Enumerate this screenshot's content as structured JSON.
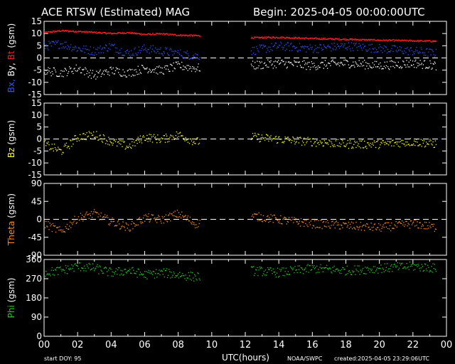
{
  "header": {
    "title": "ACE RTSW (Estimated) MAG",
    "begin": "Begin: 2025-04-05 00:00:00UTC"
  },
  "footer": {
    "start_doy": "start DOY:   95",
    "xlabel": "UTC(hours)",
    "source": "NOAA/SWPC",
    "created": "created:2025-04-05 23:29:06UTC"
  },
  "colors": {
    "background": "#000000",
    "axes": "#ffffff",
    "bx": "#2b55ff",
    "by": "#ffffff",
    "bt": "#ff2020",
    "bz": "#ffff00",
    "theta": "#ff8c1a",
    "phi": "#22cc22"
  },
  "chart_data": [
    {
      "type": "scatter",
      "panel": "bxbybt",
      "ylabel_parts": [
        {
          "text": "Bx,",
          "color": "#2b55ff"
        },
        {
          "text": " By,",
          "color": "#ffffff"
        },
        {
          "text": " Bt",
          "color": "#ff2020"
        },
        {
          "text": " (gsm)",
          "color": "#ffffff"
        }
      ],
      "ylim": [
        -15,
        15
      ],
      "yticks": [
        "15",
        "10",
        "5",
        "0",
        "-5",
        "-10",
        "-15"
      ],
      "ytick_values": [
        15,
        10,
        5,
        0,
        -5,
        -10,
        -15
      ],
      "xlim": [
        0,
        24
      ],
      "xticks": [
        "00",
        "02",
        "04",
        "06",
        "08",
        "10",
        "12",
        "14",
        "16",
        "18",
        "20",
        "22",
        "00"
      ],
      "data_gap_hours": [
        9.3,
        12.3
      ],
      "series": [
        {
          "name": "Bt",
          "color": "#ff2020",
          "values": [
            [
              0,
              10.5
            ],
            [
              1,
              11.3
            ],
            [
              2,
              11.0
            ],
            [
              3,
              10.6
            ],
            [
              4,
              10.2
            ],
            [
              5,
              10.5
            ],
            [
              6,
              9.8
            ],
            [
              7,
              10.0
            ],
            [
              8,
              9.5
            ],
            [
              9,
              9.3
            ],
            [
              12.3,
              8.4
            ],
            [
              14,
              8.6
            ],
            [
              16,
              8.1
            ],
            [
              18,
              7.8
            ],
            [
              20,
              7.4
            ],
            [
              22,
              7.2
            ],
            [
              23.4,
              7.0
            ]
          ]
        },
        {
          "name": "Bx",
          "color": "#2b55ff",
          "values": [
            [
              0,
              5
            ],
            [
              1,
              6
            ],
            [
              2,
              4
            ],
            [
              3,
              3
            ],
            [
              4,
              5
            ],
            [
              5,
              2
            ],
            [
              6,
              4
            ],
            [
              7,
              3
            ],
            [
              8,
              2
            ],
            [
              9,
              1
            ],
            [
              12.3,
              3
            ],
            [
              14,
              5
            ],
            [
              16,
              4
            ],
            [
              18,
              5
            ],
            [
              20,
              4
            ],
            [
              22,
              3
            ],
            [
              23.4,
              2
            ]
          ]
        },
        {
          "name": "By",
          "color": "#ffffff",
          "values": [
            [
              0,
              -5
            ],
            [
              1,
              -6
            ],
            [
              2,
              -4
            ],
            [
              3,
              -7
            ],
            [
              4,
              -5
            ],
            [
              5,
              -6
            ],
            [
              6,
              -4
            ],
            [
              7,
              -5
            ],
            [
              8,
              -3
            ],
            [
              9,
              -4
            ],
            [
              12.3,
              -3
            ],
            [
              14,
              -2
            ],
            [
              16,
              -3
            ],
            [
              18,
              -2
            ],
            [
              20,
              -3
            ],
            [
              22,
              -2
            ],
            [
              23.4,
              -3
            ]
          ]
        }
      ]
    },
    {
      "type": "scatter",
      "panel": "bz",
      "ylabel_parts": [
        {
          "text": "Bz",
          "color": "#ffff00"
        },
        {
          "text": "  (gsm)",
          "color": "#ffffff"
        }
      ],
      "ylim": [
        -15,
        15
      ],
      "yticks": [
        "15",
        "10",
        "5",
        "0",
        "-5",
        "-10",
        "-15"
      ],
      "ytick_values": [
        15,
        10,
        5,
        0,
        -5,
        -10,
        -15
      ],
      "series": [
        {
          "name": "Bz",
          "color": "#ffff00",
          "values": [
            [
              0,
              -2
            ],
            [
              1,
              -5
            ],
            [
              2,
              1
            ],
            [
              3,
              2
            ],
            [
              4,
              -1
            ],
            [
              5,
              -3
            ],
            [
              6,
              1
            ],
            [
              7,
              0
            ],
            [
              8,
              2
            ],
            [
              9,
              -1
            ],
            [
              12.3,
              1
            ],
            [
              14,
              0
            ],
            [
              16,
              -1
            ],
            [
              18,
              -2
            ],
            [
              20,
              -2
            ],
            [
              22,
              -1
            ],
            [
              23.4,
              -2
            ]
          ]
        }
      ]
    },
    {
      "type": "scatter",
      "panel": "theta",
      "ylabel_parts": [
        {
          "text": "Theta",
          "color": "#ff8c1a"
        },
        {
          "text": " (gsm)",
          "color": "#ffffff"
        }
      ],
      "ylim": [
        -90,
        90
      ],
      "yticks": [
        "90",
        "45",
        "0",
        "-45",
        "-90"
      ],
      "ytick_values": [
        90,
        45,
        0,
        -45,
        -90
      ],
      "series": [
        {
          "name": "Theta",
          "color": "#ff8c1a",
          "values": [
            [
              0,
              -10
            ],
            [
              1,
              -30
            ],
            [
              2,
              5
            ],
            [
              3,
              15
            ],
            [
              4,
              -5
            ],
            [
              5,
              -20
            ],
            [
              6,
              5
            ],
            [
              7,
              0
            ],
            [
              8,
              15
            ],
            [
              9,
              -10
            ],
            [
              12.3,
              10
            ],
            [
              14,
              0
            ],
            [
              16,
              -10
            ],
            [
              18,
              -15
            ],
            [
              20,
              -20
            ],
            [
              22,
              -10
            ],
            [
              23.4,
              -20
            ]
          ]
        }
      ]
    },
    {
      "type": "scatter",
      "panel": "phi",
      "ylabel_parts": [
        {
          "text": "Phi",
          "color": "#22cc22"
        },
        {
          "text": "  (gsm)",
          "color": "#ffffff"
        }
      ],
      "ylim": [
        0,
        360
      ],
      "yticks": [
        "360",
        "270",
        "180",
        "90",
        "0"
      ],
      "ytick_values": [
        360,
        270,
        180,
        90,
        0
      ],
      "series": [
        {
          "name": "Phi",
          "color": "#22cc22",
          "values": [
            [
              0,
              300
            ],
            [
              1,
              310
            ],
            [
              2,
              330
            ],
            [
              3,
              320
            ],
            [
              4,
              300
            ],
            [
              5,
              310
            ],
            [
              6,
              290
            ],
            [
              7,
              300
            ],
            [
              8,
              290
            ],
            [
              9,
              280
            ],
            [
              12.3,
              310
            ],
            [
              14,
              300
            ],
            [
              16,
              320
            ],
            [
              18,
              310
            ],
            [
              20,
              320
            ],
            [
              22,
              330
            ],
            [
              23.4,
              320
            ]
          ]
        }
      ]
    }
  ]
}
